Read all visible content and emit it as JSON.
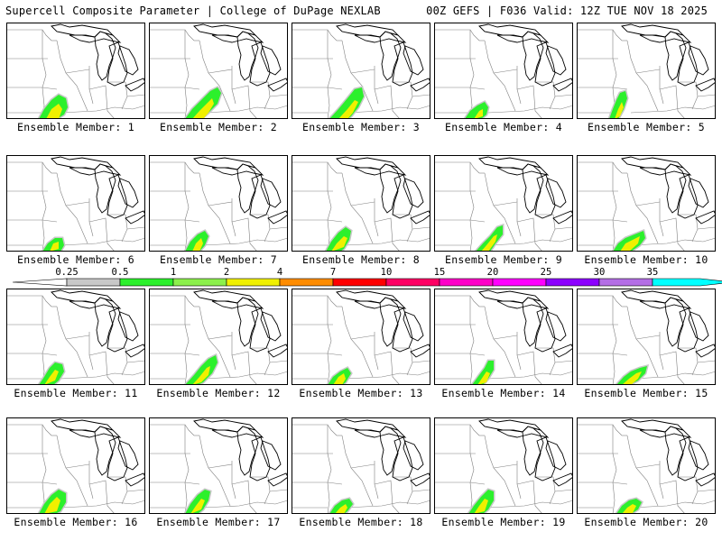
{
  "header": {
    "left_title": "Supercell Composite Parameter | College of DuPage NEXLAB",
    "right_title": "00Z GEFS | F036 Valid: 12Z TUE NOV 18 2025"
  },
  "legend": {
    "thresholds": [
      "0.25",
      "0.5",
      "1",
      "2",
      "4",
      "7",
      "10",
      "15",
      "20",
      "25",
      "30",
      "35"
    ],
    "colors": [
      "#c8c8c8",
      "#2cf02c",
      "#8cf04c",
      "#f0f000",
      "#ff8c00",
      "#ff0000",
      "#ff0064",
      "#ff00c8",
      "#ff00ff",
      "#8c00ff",
      "#b46ee6",
      "#00ffff"
    ]
  },
  "map": {
    "coast_color": "#000000",
    "border_color": "#505050",
    "state_color": "#808080"
  },
  "members": [
    {
      "label": "Ensemble Member: 1",
      "value_shading": "yes"
    },
    {
      "label": "Ensemble Member: 2",
      "value_shading": "yes"
    },
    {
      "label": "Ensemble Member: 3",
      "value_shading": "yes"
    },
    {
      "label": "Ensemble Member: 4",
      "value_shading": "yes"
    },
    {
      "label": "Ensemble Member: 5",
      "value_shading": "yes"
    },
    {
      "label": "Ensemble Member: 6",
      "value_shading": "yes"
    },
    {
      "label": "Ensemble Member: 7",
      "value_shading": "yes"
    },
    {
      "label": "Ensemble Member: 8",
      "value_shading": "yes"
    },
    {
      "label": "Ensemble Member: 9",
      "value_shading": "yes"
    },
    {
      "label": "Ensemble Member: 10",
      "value_shading": "yes"
    },
    {
      "label": "Ensemble Member: 11",
      "value_shading": "yes"
    },
    {
      "label": "Ensemble Member: 12",
      "value_shading": "yes"
    },
    {
      "label": "Ensemble Member: 13",
      "value_shading": "yes"
    },
    {
      "label": "Ensemble Member: 14",
      "value_shading": "yes"
    },
    {
      "label": "Ensemble Member: 15",
      "value_shading": "yes"
    },
    {
      "label": "Ensemble Member: 16",
      "value_shading": "yes"
    },
    {
      "label": "Ensemble Member: 17",
      "value_shading": "yes"
    },
    {
      "label": "Ensemble Member: 18",
      "value_shading": "yes"
    },
    {
      "label": "Ensemble Member: 19",
      "value_shading": "yes"
    },
    {
      "label": "Ensemble Member: 20",
      "value_shading": "yes"
    }
  ]
}
